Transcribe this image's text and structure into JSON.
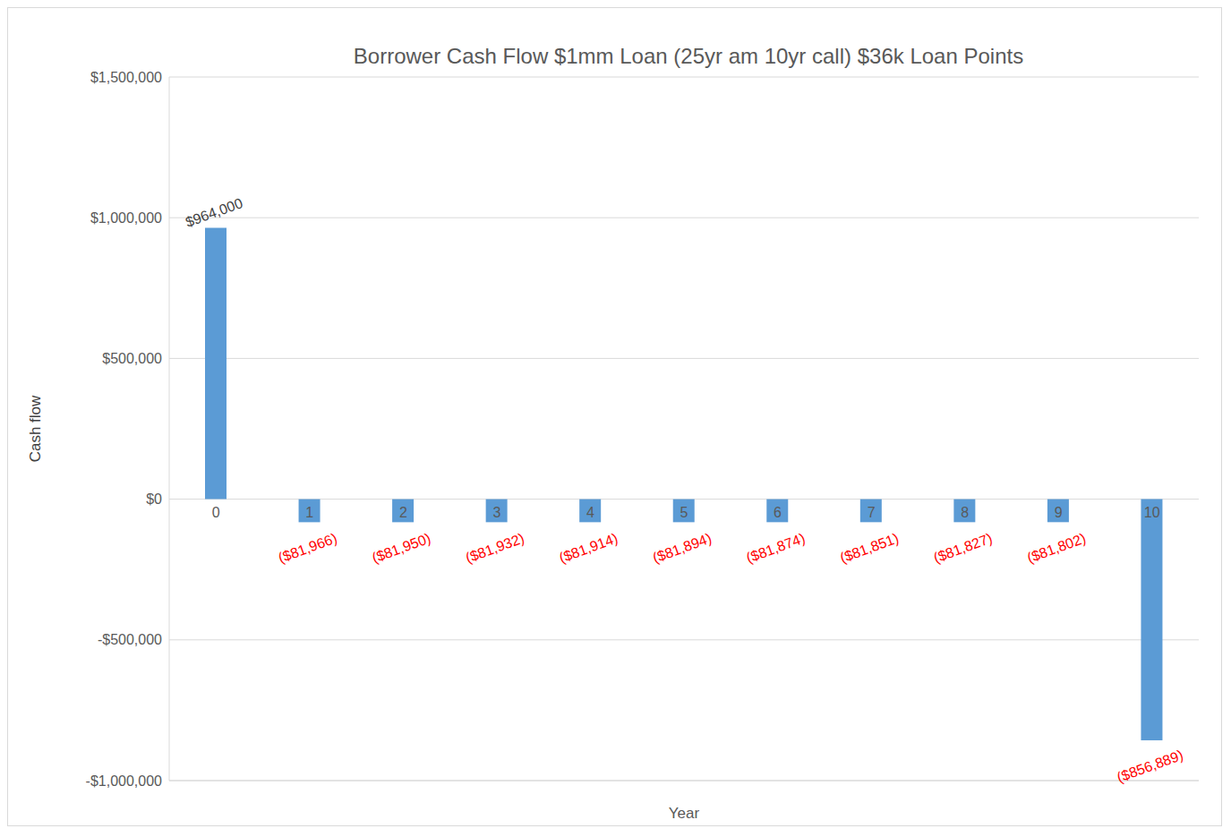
{
  "chart_data": {
    "type": "bar",
    "title": "Borrower Cash Flow $1mm Loan (25yr am 10yr call) $36k Loan Points",
    "x_label": "Year",
    "y_label": "Cash flow",
    "categories": [
      "0",
      "1",
      "2",
      "3",
      "4",
      "5",
      "6",
      "7",
      "8",
      "9",
      "10"
    ],
    "values": [
      964000,
      -81966,
      -81950,
      -81932,
      -81914,
      -81894,
      -81874,
      -81851,
      -81827,
      -81802,
      -856889
    ],
    "value_labels": [
      "$964,000",
      "($81,966)",
      "($81,950)",
      "($81,932)",
      "($81,914)",
      "($81,894)",
      "($81,874)",
      "($81,851)",
      "($81,827)",
      "($81,802)",
      "($856,889)"
    ],
    "color": "#5b9bd5",
    "ylim": [
      -1000000,
      1500000
    ],
    "yticks": [
      {
        "value": -1000000,
        "label": "-$1,000,000"
      },
      {
        "value": -500000,
        "label": "-$500,000"
      },
      {
        "value": 0,
        "label": "$0"
      },
      {
        "value": 500000,
        "label": "$500,000"
      },
      {
        "value": 1000000,
        "label": "$1,000,000"
      },
      {
        "value": 1500000,
        "label": "$1,500,000"
      }
    ],
    "grid": true,
    "data_labels": true
  }
}
